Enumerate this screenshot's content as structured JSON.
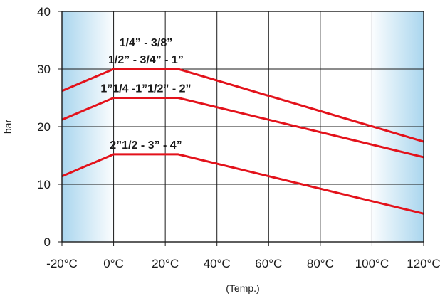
{
  "chart_data": {
    "type": "line",
    "xlabel": "(Temp.)",
    "ylabel": "bar",
    "xlim": [
      -20,
      120
    ],
    "ylim": [
      0,
      40
    ],
    "x_ticks": [
      -20,
      0,
      20,
      40,
      60,
      80,
      100,
      120
    ],
    "x_tick_labels": [
      "-20°C",
      "0°C",
      "20°C",
      "40°C",
      "60°C",
      "80°C",
      "100°C",
      "120°C"
    ],
    "y_ticks": [
      0,
      10,
      20,
      30,
      40
    ],
    "y_tick_labels": [
      "0",
      "10",
      "20",
      "30",
      "40"
    ],
    "grid": true,
    "series": [
      {
        "label_lines": [
          "1/4” - 3/8”",
          "1/2” - 3/4” - 1”"
        ],
        "x": [
          -20,
          0,
          25,
          120
        ],
        "y": [
          26.2,
          30,
          30,
          17.4
        ]
      },
      {
        "label_lines": [
          "1”1/4 -1”1/2” - 2”"
        ],
        "x": [
          -20,
          0,
          25,
          120
        ],
        "y": [
          21.2,
          25,
          25,
          14.7
        ]
      },
      {
        "label_lines": [
          "2”1/2 - 3” - 4”"
        ],
        "x": [
          -20,
          0,
          25,
          120
        ],
        "y": [
          11.4,
          15.2,
          15.2,
          4.9
        ]
      }
    ]
  },
  "colors": {
    "line": "#e3121b",
    "grid": "#1a1a1a",
    "shade_edge": "#aad6ee",
    "shade_mid": "#ffffff"
  }
}
